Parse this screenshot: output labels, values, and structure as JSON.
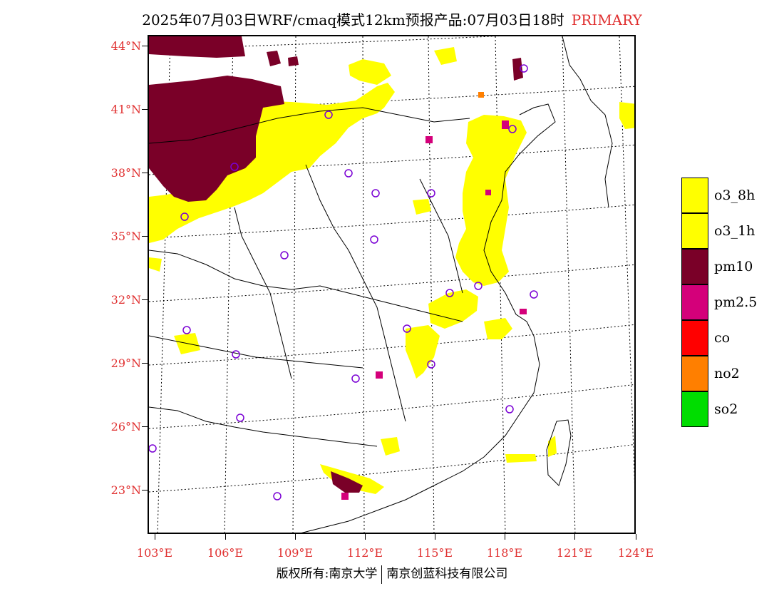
{
  "title": {
    "main": "2025年07月03日WRF/cmaq模式12km预报产品:07月03日18时",
    "tag": "PRIMARY"
  },
  "axes": {
    "lat_labels": [
      "44°N",
      "41°N",
      "38°N",
      "35°N",
      "32°N",
      "29°N",
      "26°N",
      "23°N"
    ],
    "lon_labels": [
      "103°E",
      "106°E",
      "109°E",
      "112°E",
      "115°E",
      "118°E",
      "121°E",
      "124°E"
    ]
  },
  "legend": [
    {
      "label": "o3_8h",
      "color": "#ffff00"
    },
    {
      "label": "o3_1h",
      "color": "#ffff00"
    },
    {
      "label": "pm10",
      "color": "#7a0028"
    },
    {
      "label": "pm2.5",
      "color": "#d4007a"
    },
    {
      "label": "co",
      "color": "#ff0000"
    },
    {
      "label": "no2",
      "color": "#ff7f00"
    },
    {
      "label": "so2",
      "color": "#00dd00"
    }
  ],
  "footer": {
    "left": "版权所有:南京大学",
    "right": "南京创蓝科技有限公司"
  }
}
